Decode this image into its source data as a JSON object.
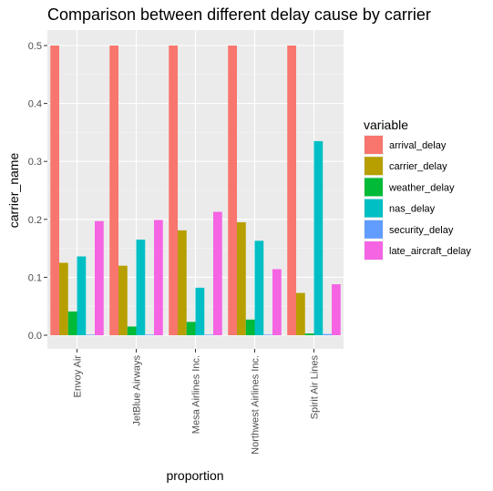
{
  "chart_data": {
    "type": "bar",
    "title": "Comparison between different delay cause by carrier",
    "xlabel": "proportion",
    "ylabel": "carrier_name",
    "ylim": [
      0,
      0.52
    ],
    "yticks": [
      "0.0",
      "0.1",
      "0.2",
      "0.3",
      "0.4",
      "0.5"
    ],
    "grid": true,
    "legend_title": "variable",
    "legend_position": "right",
    "categories": [
      "Envoy Air",
      "JetBlue Airways",
      "Mesa Airlines Inc.",
      "Northwest Airlines Inc.",
      "Spirit Air Lines"
    ],
    "series": [
      {
        "name": "arrival_delay",
        "color": "#F8766D",
        "values": [
          0.5,
          0.5,
          0.5,
          0.5,
          0.5
        ]
      },
      {
        "name": "carrier_delay",
        "color": "#B79F00",
        "values": [
          0.125,
          0.12,
          0.181,
          0.195,
          0.073
        ]
      },
      {
        "name": "weather_delay",
        "color": "#00BA38",
        "values": [
          0.041,
          0.015,
          0.023,
          0.027,
          0.003
        ]
      },
      {
        "name": "nas_delay",
        "color": "#00BFC4",
        "values": [
          0.136,
          0.165,
          0.082,
          0.163,
          0.335
        ]
      },
      {
        "name": "security_delay",
        "color": "#619CFF",
        "values": [
          0.001,
          0.001,
          0.001,
          0.001,
          0.002
        ]
      },
      {
        "name": "late_aircraft_delay",
        "color": "#F564E3",
        "values": [
          0.197,
          0.199,
          0.213,
          0.114,
          0.088
        ]
      }
    ]
  }
}
